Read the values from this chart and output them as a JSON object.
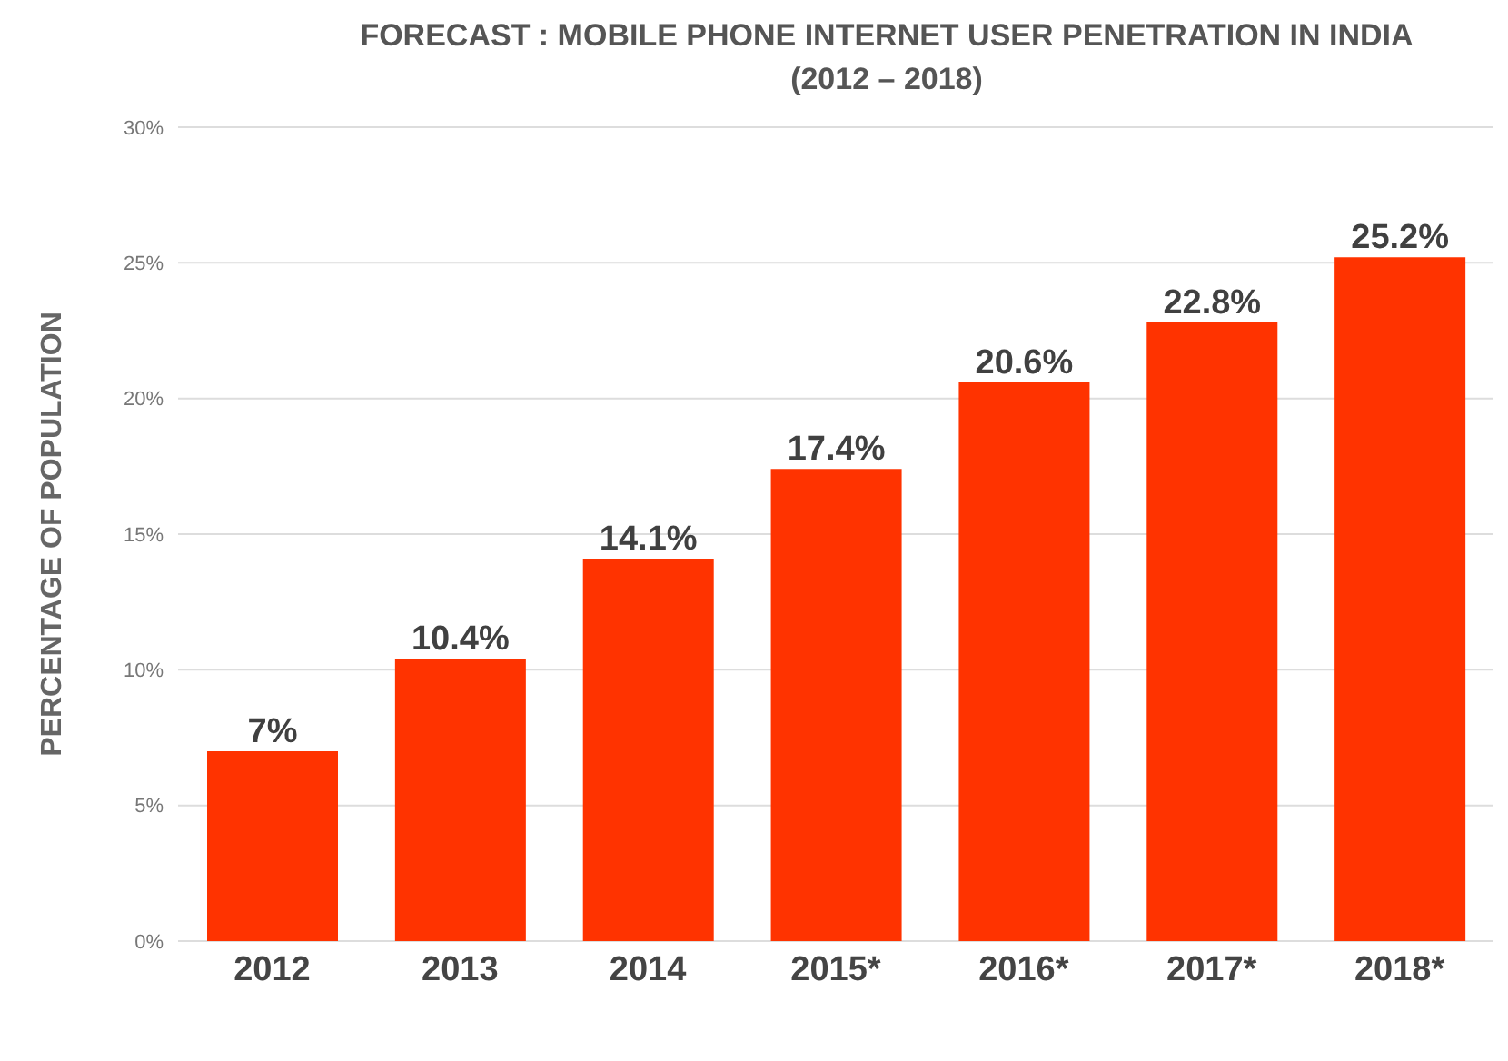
{
  "chart_data": {
    "type": "bar",
    "title": "FORECAST : MOBILE PHONE INTERNET USER PENETRATION IN INDIA\n(2012 – 2018)",
    "ylabel": "PERCENTAGE OF POPULATION",
    "categories": [
      "2012",
      "2013",
      "2014",
      "2015*",
      "2016*",
      "2017*",
      "2018*"
    ],
    "values": [
      7,
      10.4,
      14.1,
      17.4,
      20.6,
      22.8,
      25.2
    ],
    "value_labels": [
      "7%",
      "10.4%",
      "14.1%",
      "17.4%",
      "20.6%",
      "22.8%",
      "25.2%"
    ],
    "color": "#ff3300",
    "ylim": [
      0,
      30
    ],
    "yticks": [
      {
        "value": 0,
        "label": "0%"
      },
      {
        "value": 5,
        "label": "5%"
      },
      {
        "value": 10,
        "label": "10%"
      },
      {
        "value": 15,
        "label": "15%"
      },
      {
        "value": 20,
        "label": "20%"
      },
      {
        "value": 25,
        "label": "25%"
      },
      {
        "value": 30,
        "label": "30%"
      }
    ],
    "grid": "y"
  }
}
